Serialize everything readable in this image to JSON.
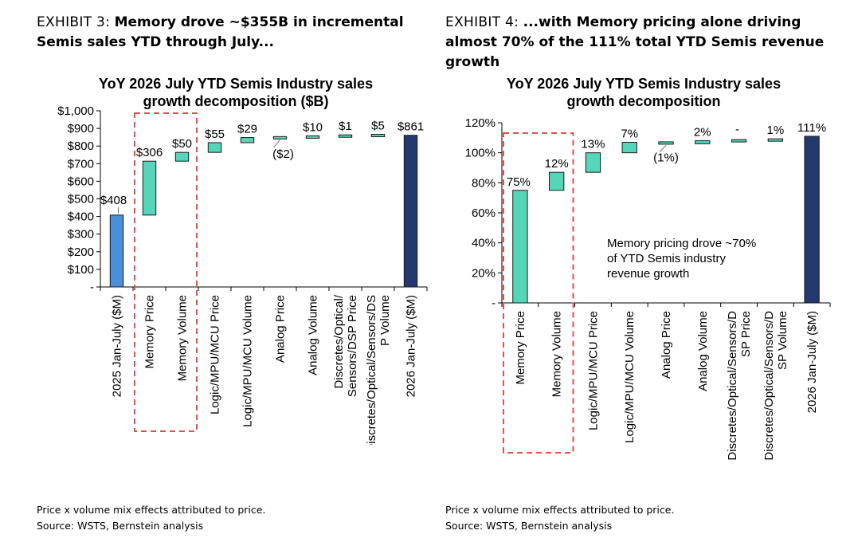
{
  "exhibits": [
    {
      "label": "EXHIBIT 3:",
      "headline": "Memory drove ~$355B in incremental Semis sales YTD through July...",
      "note": "Price x volume mix effects attributed to price.",
      "source": "Source: WSTS, Bernstein analysis"
    },
    {
      "label": "EXHIBIT 4:",
      "headline": "...with Memory pricing alone driving almost 70% of the 111% total YTD Semis revenue growth",
      "note": "Price x volume mix effects attributed to price.",
      "source": "Source: WSTS, Bernstein analysis"
    }
  ],
  "colors": {
    "start_bar": "#4a90d9",
    "increment_bar": "#56d6b8",
    "end_bar": "#243a6e",
    "highlight_box": "#d9534f",
    "connector": "#000000"
  },
  "chart_data": [
    {
      "type": "bar",
      "subtype": "waterfall",
      "title": "YoY 2026 July YTD Semis Industry sales growth decomposition ($B)",
      "title_lines": [
        "YoY 2026 July YTD Semis Industry sales",
        "growth decomposition ($B)"
      ],
      "ylim": [
        0,
        1000
      ],
      "y_ticks": [
        "-",
        "$100",
        "$200",
        "$300",
        "$400",
        "$500",
        "$600",
        "$700",
        "$800",
        "$900",
        "$1,000"
      ],
      "categories": [
        "2025 Jan-July ($M)",
        "Memory Price",
        "Memory Volume",
        "Logic/MPU/MCU Price",
        "Logic/MPU/MCU Volume",
        "Analog Price",
        "Analog Volume",
        "Discretes/Optical/Sensors/DSP Price",
        "Discretes/Optical/Sensors/DSP Volume",
        "2026 Jan-July ($M)"
      ],
      "category_lines": [
        [
          "2025 Jan-July ($M)"
        ],
        [
          "Memory Price"
        ],
        [
          "Memory Volume"
        ],
        [
          "Logic/MPU/MCU Price"
        ],
        [
          "Logic/MPU/MCU Volume"
        ],
        [
          "Analog Price"
        ],
        [
          "Analog Volume"
        ],
        [
          "Discretes/Optical/",
          "Sensors/DSP Price"
        ],
        [
          "Discretes/Optical/Sensors/DS",
          "P Volume"
        ],
        [
          "2026 Jan-July ($M)"
        ]
      ],
      "bar_kind": [
        "start",
        "delta",
        "delta",
        "delta",
        "delta",
        "delta",
        "delta",
        "delta",
        "delta",
        "end"
      ],
      "values": [
        408,
        306,
        50,
        55,
        29,
        -2,
        10,
        1,
        5,
        861
      ],
      "data_labels": [
        "$408",
        "$306",
        "$50",
        "$55",
        "$29",
        "($2)",
        "$10",
        "$1",
        "$5",
        "$861"
      ],
      "highlight_categories": [
        "Memory Price",
        "Memory Volume"
      ]
    },
    {
      "type": "bar",
      "subtype": "waterfall",
      "title": "YoY 2026 July YTD Semis Industry sales growth decomposition",
      "title_lines": [
        "YoY 2026 July YTD Semis Industry sales",
        "growth decomposition"
      ],
      "ylim": [
        0,
        120
      ],
      "y_ticks": [
        "-",
        "20%",
        "40%",
        "60%",
        "80%",
        "100%",
        "120%"
      ],
      "categories": [
        "Memory Price",
        "Memory Volume",
        "Logic/MPU/MCU Price",
        "Logic/MPU/MCU Volume",
        "Analog Price",
        "Analog Volume",
        "Discretes/Optical/Sensors/DSP Price",
        "Discretes/Optical/Sensors/DSP Volume",
        "2026 Jan-July ($M)"
      ],
      "category_lines": [
        [
          "Memory Price"
        ],
        [
          "Memory Volume"
        ],
        [
          "Logic/MPU/MCU Price"
        ],
        [
          "Logic/MPU/MCU Volume"
        ],
        [
          "Analog Price"
        ],
        [
          "Analog Volume"
        ],
        [
          "Discretes/Optical/Sensors/D",
          "SP Price"
        ],
        [
          "Discretes/Optical/Sensors/D",
          "SP Volume"
        ],
        [
          "2026 Jan-July ($M)"
        ]
      ],
      "bar_kind": [
        "delta",
        "delta",
        "delta",
        "delta",
        "delta",
        "delta",
        "delta",
        "delta",
        "end"
      ],
      "values": [
        75,
        12,
        13,
        7,
        -1,
        2,
        0,
        1,
        111
      ],
      "data_labels": [
        "75%",
        "12%",
        "13%",
        "7%",
        "(1%)",
        "2%",
        "-",
        "1%",
        "111%"
      ],
      "highlight_categories": [
        "Memory Price",
        "Memory Volume"
      ],
      "annotation": [
        "Memory pricing drove ~70%",
        "of YTD Semis industry",
        "revenue growth"
      ]
    }
  ]
}
